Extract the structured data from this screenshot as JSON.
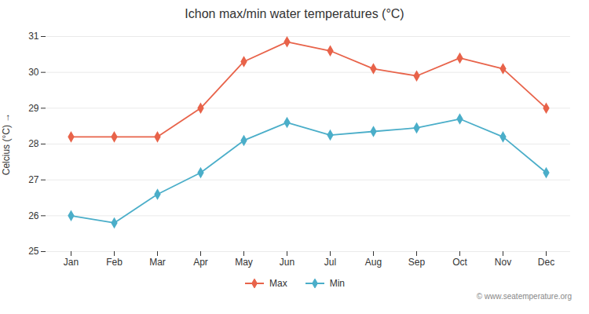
{
  "chart_data": {
    "type": "line",
    "title": "Ichon max/min water temperatures (°C)",
    "ylabel": "Celcius (°C)",
    "caption": "© www.seatemperature.org",
    "categories": [
      "Jan",
      "Feb",
      "Mar",
      "Apr",
      "May",
      "Jun",
      "Jul",
      "Aug",
      "Sep",
      "Oct",
      "Nov",
      "Dec"
    ],
    "series": [
      {
        "name": "Max",
        "color": "#e8634a",
        "values": [
          28.2,
          28.2,
          28.2,
          29.0,
          30.3,
          30.85,
          30.6,
          30.1,
          29.9,
          30.4,
          30.1,
          29.0
        ]
      },
      {
        "name": "Min",
        "color": "#4baec9",
        "values": [
          26.0,
          25.8,
          26.6,
          27.2,
          28.1,
          28.6,
          28.25,
          28.35,
          28.45,
          28.7,
          28.2,
          27.2
        ]
      }
    ],
    "ylim": [
      25,
      31
    ],
    "yticks": [
      25,
      26,
      27,
      28,
      29,
      30,
      31
    ],
    "grid": true,
    "legend": "bottom",
    "marker": "diamond"
  }
}
